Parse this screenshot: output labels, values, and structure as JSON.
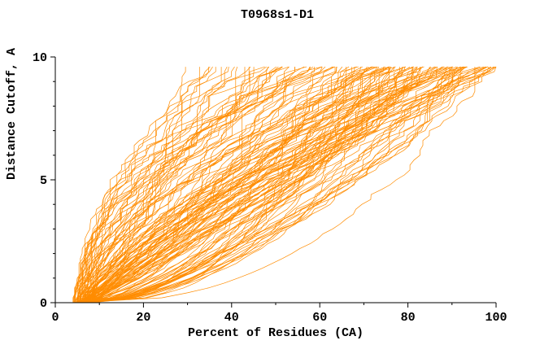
{
  "window": {
    "background": "#ffffff"
  },
  "chart_data": {
    "type": "line",
    "title": "T0968s1-D1",
    "xlabel": "Percent of Residues (CA)",
    "ylabel": "Distance Cutoff, A",
    "xlim": [
      0,
      100
    ],
    "ylim": [
      0,
      10
    ],
    "x_ticks": [
      0,
      20,
      40,
      60,
      80,
      100
    ],
    "x_minor_ticks": [
      10,
      30,
      50,
      70,
      90
    ],
    "y_ticks": [
      0,
      5,
      10
    ],
    "y_minor_ticks": [
      1,
      2,
      3,
      4,
      6,
      7,
      8,
      9
    ],
    "grid": false,
    "legend": "none",
    "axis_color": "#000000",
    "series_color": "#ff8c00",
    "series_description": "Dense ensemble of ~140 overlapping thin orange GDT curves (one per predicted model): percent of CA residues (x) that fit under each distance cutoff (y). All curves rise monotonically from ~4-9% at 0 A up to between ~25% and 100% at ~9.6 A, with heavy bunching near the bottom-left and along the right edge near 100%.",
    "envelope_estimate": {
      "left_edge": [
        [
          5,
          0
        ],
        [
          9,
          1
        ],
        [
          13,
          2.5
        ],
        [
          17,
          4
        ],
        [
          20,
          5.5
        ],
        [
          23,
          7.5
        ],
        [
          26,
          9.6
        ]
      ],
      "right_edge": [
        [
          9,
          0
        ],
        [
          35,
          0.4
        ],
        [
          60,
          1.0
        ],
        [
          80,
          2.2
        ],
        [
          92,
          4.0
        ],
        [
          98,
          6.5
        ],
        [
          100,
          9.6
        ]
      ]
    },
    "generator": {
      "seed": 20,
      "curve_count": 140,
      "y_top": 9.6,
      "y_step": 0.2,
      "xs_min": 4,
      "xs_max": 8.5,
      "xf_min": 25,
      "xf_max": 100,
      "xf_skew": 0.55,
      "a_min": 0.3,
      "a_max": 2.8
    }
  }
}
